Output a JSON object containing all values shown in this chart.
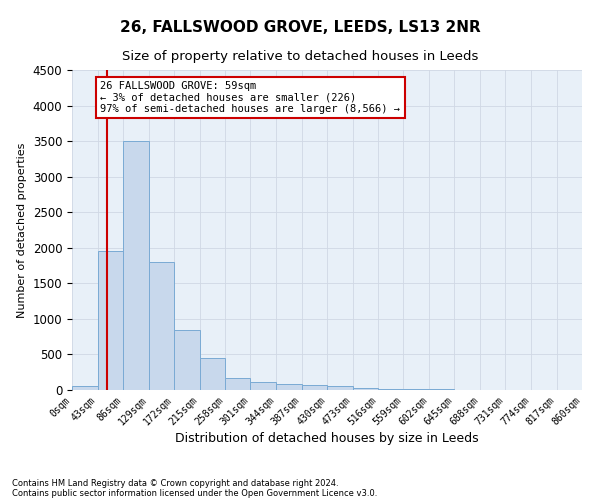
{
  "title": "26, FALLSWOOD GROVE, LEEDS, LS13 2NR",
  "subtitle": "Size of property relative to detached houses in Leeds",
  "xlabel": "Distribution of detached houses by size in Leeds",
  "ylabel": "Number of detached properties",
  "footer_line1": "Contains HM Land Registry data © Crown copyright and database right 2024.",
  "footer_line2": "Contains public sector information licensed under the Open Government Licence v3.0.",
  "bar_edges": [
    0,
    43,
    86,
    129,
    172,
    215,
    258,
    301,
    344,
    387,
    430,
    473,
    516,
    559,
    602,
    645,
    688,
    731,
    774,
    817,
    860
  ],
  "bar_heights": [
    50,
    1950,
    3500,
    1800,
    850,
    450,
    175,
    110,
    80,
    65,
    50,
    30,
    15,
    10,
    8,
    6,
    5,
    4,
    3,
    2
  ],
  "bar_color": "#c8d8ec",
  "bar_edge_color": "#7aaad4",
  "property_size": 59,
  "property_line_color": "#cc0000",
  "annotation_line1": "26 FALLSWOOD GROVE: 59sqm",
  "annotation_line2": "← 3% of detached houses are smaller (226)",
  "annotation_line3": "97% of semi-detached houses are larger (8,566) →",
  "annotation_box_color": "#cc0000",
  "ylim": [
    0,
    4500
  ],
  "yticks": [
    0,
    500,
    1000,
    1500,
    2000,
    2500,
    3000,
    3500,
    4000,
    4500
  ],
  "bg_color": "#ffffff",
  "grid_color": "#d0d8e4",
  "title_fontsize": 11,
  "subtitle_fontsize": 9.5,
  "tick_label_fontsize": 7,
  "ylabel_fontsize": 8,
  "xlabel_fontsize": 9
}
